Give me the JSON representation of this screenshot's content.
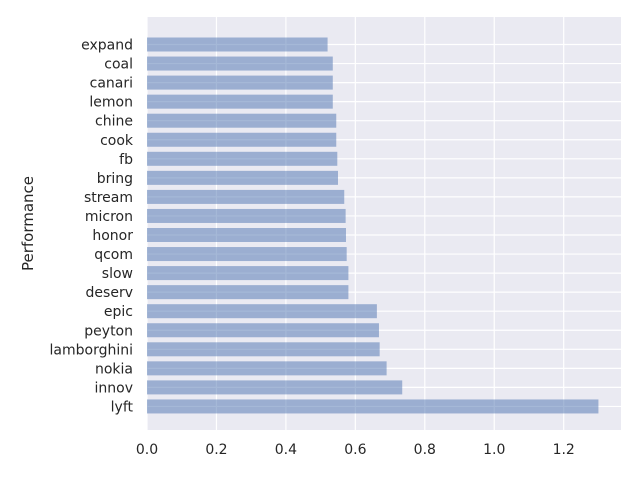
{
  "chart_data": {
    "type": "bar",
    "orientation": "horizontal",
    "title": "",
    "xlabel": "",
    "ylabel": "Performance",
    "categories": [
      "expand",
      "coal",
      "canari",
      "lemon",
      "chine",
      "cook",
      "fb",
      "bring",
      "stream",
      "micron",
      "honor",
      "qcom",
      "slow",
      "deserv",
      "epic",
      "peyton",
      "lamborghini",
      "nokia",
      "innov",
      "lyft"
    ],
    "values": [
      0.52,
      0.535,
      0.535,
      0.535,
      0.545,
      0.545,
      0.548,
      0.55,
      0.568,
      0.572,
      0.573,
      0.575,
      0.58,
      0.58,
      0.662,
      0.668,
      0.67,
      0.69,
      0.735,
      1.3
    ],
    "xlim": [
      0,
      1.365
    ],
    "xticks": [
      "0.0",
      "0.2",
      "0.4",
      "0.6",
      "0.8",
      "1.0",
      "1.2"
    ],
    "grid": true,
    "bar_color": "#4c72b0",
    "background_color": "#eaeaf2"
  }
}
